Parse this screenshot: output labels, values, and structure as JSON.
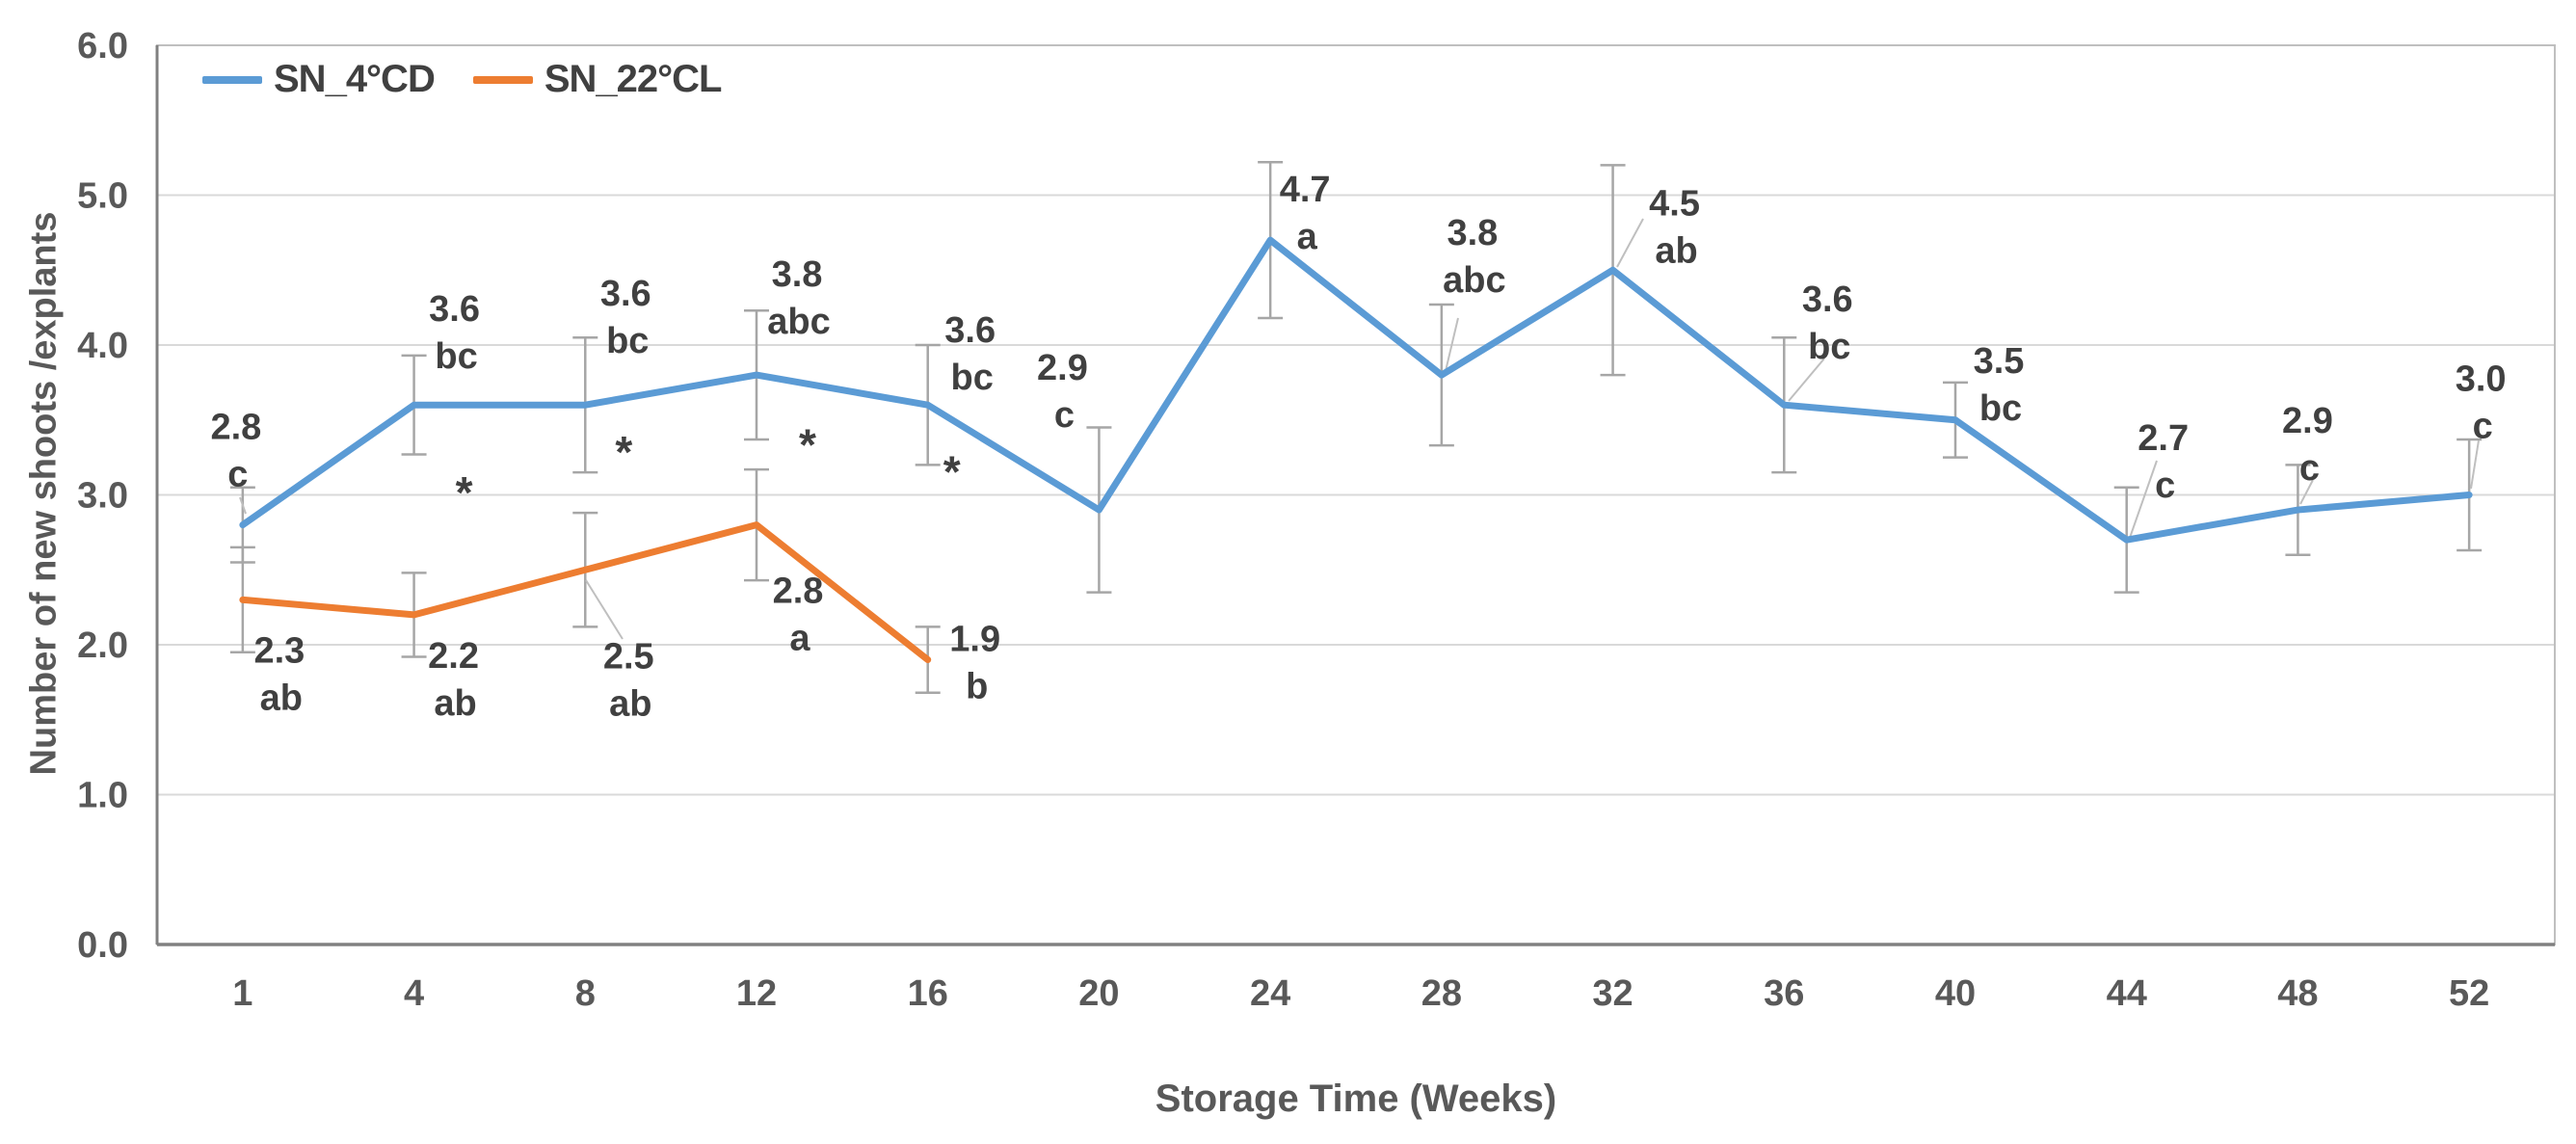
{
  "chart_data": {
    "type": "line",
    "title": "",
    "xlabel": "Storage Time (Weeks)",
    "ylabel": "Number of new shoots /explants",
    "ylim": [
      0.0,
      6.0
    ],
    "ytick_step": 1.0,
    "ytick_decimals": 1,
    "grid": "horizontal",
    "legend_position": "top-left-inside",
    "categories": [
      1,
      4,
      8,
      12,
      16,
      20,
      24,
      28,
      32,
      36,
      40,
      44,
      48,
      52
    ],
    "series": [
      {
        "name": "SN_4°CD",
        "color": "#5B9BD5",
        "values": [
          2.8,
          3.6,
          3.6,
          3.8,
          3.6,
          2.9,
          4.7,
          3.8,
          4.5,
          3.6,
          3.5,
          2.7,
          2.9,
          3.0
        ],
        "letters": [
          "c",
          "bc",
          "bc",
          "abc",
          "bc",
          "c",
          "a",
          "abc",
          "ab",
          "bc",
          "bc",
          "c",
          "c",
          "c"
        ],
        "error_bars": [
          0.25,
          0.33,
          0.45,
          0.43,
          0.4,
          0.55,
          0.52,
          0.47,
          0.7,
          0.45,
          0.25,
          0.35,
          0.3,
          0.37
        ]
      },
      {
        "name": "SN_22°CL",
        "color": "#ED7D31",
        "values": [
          2.3,
          2.2,
          2.5,
          2.8,
          1.9
        ],
        "letters": [
          "ab",
          "ab",
          "ab",
          "a",
          "b"
        ],
        "error_bars": [
          0.35,
          0.28,
          0.38,
          0.37,
          0.22
        ]
      }
    ],
    "annotations": {
      "significance_symbol": "*",
      "significant_weeks": [
        4,
        8,
        12,
        16
      ]
    },
    "style_colors": {
      "gridline": "#D9D9D9",
      "plot_border": "#BFBFBF",
      "axis_line": "#808080",
      "error_bar": "#A6A6A6",
      "leader_line": "#BFBFBF",
      "label_text": "#404040",
      "tick_text": "#595959"
    }
  }
}
